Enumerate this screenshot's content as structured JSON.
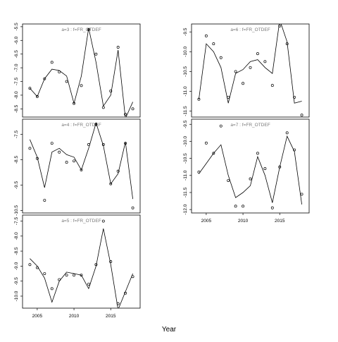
{
  "figure": {
    "xlabel": "Year"
  },
  "chart_data": [
    {
      "type": "line",
      "title": "a=3  :  f=FR_OTDEF",
      "xlim": [
        2003,
        2019
      ],
      "ylim": [
        -8.8,
        -5.4
      ],
      "yticks": [
        -5.5,
        -6.0,
        -6.5,
        -7.0,
        -7.5,
        -8.0,
        -8.5
      ],
      "xticks": [],
      "points": {
        "x": [
          2004,
          2005,
          2006,
          2007,
          2008,
          2009,
          2010,
          2011,
          2012,
          2013,
          2014,
          2015,
          2016,
          2017,
          2018
        ],
        "y": [
          -7.75,
          -8.05,
          -7.4,
          -6.8,
          -7.15,
          -7.5,
          -8.3,
          -7.65,
          -5.6,
          -6.5,
          -8.45,
          -7.85,
          -6.25,
          -8.7,
          -8.5
        ]
      },
      "fit": {
        "x": [
          2004,
          2005,
          2006,
          2007,
          2008,
          2009,
          2010,
          2011,
          2012,
          2013,
          2014,
          2015,
          2016,
          2017,
          2018
        ],
        "y": [
          -7.75,
          -8.05,
          -7.4,
          -7.05,
          -7.1,
          -7.3,
          -8.3,
          -7.3,
          -5.55,
          -6.8,
          -8.4,
          -8.0,
          -6.35,
          -8.85,
          -8.25
        ]
      }
    },
    {
      "type": "line",
      "title": "a=4  :  f=FR_OTDEF",
      "xlim": [
        2003,
        2019
      ],
      "ylim": [
        -10.6,
        -6.9
      ],
      "yticks": [
        -7.5,
        -8.5,
        -9.5,
        -10.5
      ],
      "xticks": [],
      "points": {
        "x": [
          2004,
          2005,
          2006,
          2007,
          2008,
          2009,
          2010,
          2011,
          2012,
          2013,
          2014,
          2015,
          2016,
          2017,
          2018
        ],
        "y": [
          -8.05,
          -8.45,
          -10.1,
          -7.85,
          -8.2,
          -8.6,
          -8.55,
          -8.9,
          -7.9,
          -7.1,
          -7.9,
          -9.45,
          -8.95,
          -7.85,
          -10.4
        ]
      },
      "fit": {
        "x": [
          2004,
          2005,
          2006,
          2007,
          2008,
          2009,
          2010,
          2011,
          2012,
          2013,
          2014,
          2015,
          2016,
          2017,
          2018
        ],
        "y": [
          -7.7,
          -8.4,
          -9.6,
          -8.2,
          -8.05,
          -8.3,
          -8.4,
          -8.9,
          -8.05,
          -7.05,
          -7.95,
          -9.45,
          -9.05,
          -7.8,
          -10.05
        ]
      }
    },
    {
      "type": "line",
      "title": "a=5  :  f=FR_OTDEF",
      "xlim": [
        2003,
        2019
      ],
      "ylim": [
        -10.4,
        -7.3
      ],
      "yticks": [
        -7.5,
        -8.0,
        -8.5,
        -9.0,
        -9.5,
        -10.0
      ],
      "xticks": [
        2005,
        2010,
        2015
      ],
      "points": {
        "x": [
          2004,
          2005,
          2006,
          2007,
          2008,
          2009,
          2010,
          2011,
          2012,
          2013,
          2014,
          2015,
          2016,
          2017,
          2018
        ],
        "y": [
          -8.95,
          -9.05,
          -9.25,
          -9.75,
          -9.45,
          -9.3,
          -9.3,
          -9.3,
          -9.6,
          -8.95,
          -7.5,
          -8.85,
          -10.25,
          -9.9,
          -9.35
        ]
      },
      "fit": {
        "x": [
          2004,
          2005,
          2006,
          2007,
          2008,
          2009,
          2010,
          2011,
          2012,
          2013,
          2014,
          2015,
          2016,
          2017,
          2018
        ],
        "y": [
          -8.75,
          -9.0,
          -9.4,
          -10.2,
          -9.5,
          -9.2,
          -9.25,
          -9.3,
          -9.75,
          -9.0,
          -7.75,
          -8.95,
          -10.45,
          -9.85,
          -9.25
        ]
      }
    },
    {
      "type": "line",
      "title": "a=6  :  f=FR_OTDEF",
      "xlim": [
        2003,
        2019
      ],
      "ylim": [
        -11.65,
        -9.3
      ],
      "yticks": [
        -9.5,
        -10.0,
        -10.5,
        -11.0,
        -11.5
      ],
      "xticks": [],
      "points": {
        "x": [
          2004,
          2005,
          2006,
          2007,
          2008,
          2009,
          2010,
          2011,
          2012,
          2013,
          2014,
          2015,
          2016,
          2017,
          2018
        ],
        "y": [
          -11.2,
          -9.6,
          -9.8,
          -10.15,
          -11.15,
          -10.5,
          -10.8,
          -10.4,
          -10.05,
          -10.25,
          -10.85,
          -9.35,
          -9.8,
          -11.15,
          -11.6
        ]
      },
      "fit": {
        "x": [
          2004,
          2005,
          2006,
          2007,
          2008,
          2009,
          2010,
          2011,
          2012,
          2013,
          2014,
          2015,
          2016,
          2017,
          2018
        ],
        "y": [
          -11.2,
          -9.8,
          -10.0,
          -10.4,
          -11.3,
          -10.55,
          -10.45,
          -10.25,
          -10.2,
          -10.4,
          -10.55,
          -9.2,
          -9.75,
          -11.3,
          -11.25
        ]
      }
    },
    {
      "type": "line",
      "title": "a=7  :  f=FR_OTDEF",
      "xlim": [
        2003,
        2019
      ],
      "ylim": [
        -12.1,
        -9.35
      ],
      "yticks": [
        -9.5,
        -10.0,
        -10.5,
        -11.0,
        -11.5,
        -12.0
      ],
      "xticks": [
        2005,
        2010,
        2015
      ],
      "points": {
        "x": [
          2004,
          2005,
          2006,
          2007,
          2008,
          2009,
          2010,
          2011,
          2012,
          2013,
          2014,
          2015,
          2016,
          2017,
          2018
        ],
        "y": [
          -10.9,
          -10.05,
          -10.35,
          -9.55,
          -11.15,
          -11.9,
          -11.9,
          -11.1,
          -10.35,
          -10.8,
          -11.95,
          -10.75,
          -9.75,
          -10.25,
          -11.55
        ]
      },
      "fit": {
        "x": [
          2004,
          2005,
          2006,
          2007,
          2008,
          2009,
          2010,
          2011,
          2012,
          2013,
          2014,
          2015,
          2016,
          2017,
          2018
        ],
        "y": [
          -10.95,
          -10.65,
          -10.35,
          -10.1,
          -11.0,
          -11.65,
          -11.5,
          -11.3,
          -10.45,
          -11.0,
          -11.8,
          -10.75,
          -9.85,
          -10.3,
          -11.85
        ]
      }
    }
  ]
}
